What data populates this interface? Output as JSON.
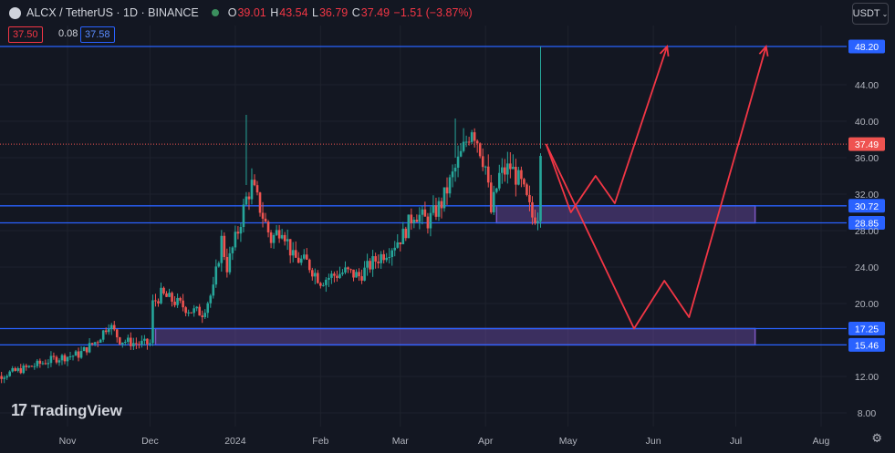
{
  "header": {
    "symbol": "ALCX / TetherUS · 1D · BINANCE",
    "o_label": "O",
    "o_value": "39.01",
    "h_label": "H",
    "h_value": "43.54",
    "l_label": "L",
    "l_value": "36.79",
    "c_label": "C",
    "c_value": "37.49",
    "change": "−1.51 (−3.87%)"
  },
  "currency_button": "USDT",
  "prices": {
    "bid": "37.50",
    "spread": "0.08",
    "ask": "37.58"
  },
  "logo_text": "TradingView",
  "colors": {
    "background": "#131722",
    "up": "#26a69a",
    "down": "#ef5350",
    "hline": "#2962ff",
    "zone": "#7e57c2",
    "arrow": "#f23645"
  },
  "chart_data": {
    "type": "candlestick",
    "x_ticks": [
      "Nov",
      "Dec",
      "2024",
      "Feb",
      "Mar",
      "Apr",
      "May",
      "Jun",
      "Jul",
      "Aug"
    ],
    "y_ticks": [
      "48.20",
      "44.00",
      "40.00",
      "37.49",
      "36.00",
      "32.00",
      "30.72",
      "28.85",
      "28.00",
      "24.00",
      "20.00",
      "17.25",
      "15.46",
      "12.00",
      "8.00"
    ],
    "y_range": [
      6.5,
      50.5
    ],
    "last_price": 37.49,
    "horizontal_levels": [
      48.2,
      30.72,
      28.85,
      17.25,
      15.46
    ],
    "zones": [
      {
        "low": 28.85,
        "high": 30.72,
        "from": "2024-04-05",
        "to": "2024-07-08"
      },
      {
        "low": 15.46,
        "high": 17.25,
        "from": "2023-12-03",
        "to": "2024-07-08"
      }
    ],
    "price_path": [
      [
        "2023-10-01",
        11.4
      ],
      [
        "2023-10-10",
        12.3
      ],
      [
        "2023-10-20",
        13.2
      ],
      [
        "2023-10-28",
        14.0
      ],
      [
        "2023-11-05",
        14.4
      ],
      [
        "2023-11-12",
        16.0
      ],
      [
        "2023-11-16",
        17.8
      ],
      [
        "2023-11-20",
        16.0
      ],
      [
        "2023-11-26",
        15.6
      ],
      [
        "2023-12-01",
        15.6
      ],
      [
        "2023-12-02",
        20.0
      ],
      [
        "2023-12-05",
        21.0
      ],
      [
        "2023-12-10",
        20.2
      ],
      [
        "2023-12-16",
        19.2
      ],
      [
        "2023-12-20",
        19.0
      ],
      [
        "2023-12-24",
        21.5
      ],
      [
        "2023-12-27",
        27.0
      ],
      [
        "2023-12-29",
        24.0
      ],
      [
        "2024-01-02",
        28.0
      ],
      [
        "2024-01-05",
        31.5
      ],
      [
        "2024-01-07",
        33.0
      ],
      [
        "2024-01-10",
        30.5
      ],
      [
        "2024-01-14",
        27.0
      ],
      [
        "2024-01-18",
        28.5
      ],
      [
        "2024-01-22",
        25.0
      ],
      [
        "2024-01-27",
        24.5
      ],
      [
        "2024-02-01",
        22.5
      ],
      [
        "2024-02-05",
        23.0
      ],
      [
        "2024-02-10",
        23.5
      ],
      [
        "2024-02-15",
        23.0
      ],
      [
        "2024-02-20",
        24.5
      ],
      [
        "2024-02-26",
        26.0
      ],
      [
        "2024-03-02",
        27.5
      ],
      [
        "2024-03-06",
        30.0
      ],
      [
        "2024-03-11",
        29.0
      ],
      [
        "2024-03-16",
        31.0
      ],
      [
        "2024-03-20",
        34.0
      ],
      [
        "2024-03-24",
        37.0
      ],
      [
        "2024-03-27",
        39.5
      ],
      [
        "2024-03-29",
        38.0
      ],
      [
        "2024-04-01",
        35.0
      ],
      [
        "2024-04-03",
        30.0
      ],
      [
        "2024-04-06",
        34.0
      ],
      [
        "2024-04-10",
        35.0
      ],
      [
        "2024-04-14",
        33.0
      ],
      [
        "2024-04-18",
        29.5
      ],
      [
        "2024-04-20",
        29.8
      ],
      [
        "2024-04-21",
        37.5
      ]
    ],
    "projection_arrows": [
      [
        [
          "2024-04-23",
          37.5
        ],
        [
          "2024-05-02",
          30.0
        ],
        [
          "2024-05-11",
          34.0
        ],
        [
          "2024-05-18",
          31.0
        ],
        [
          "2024-06-06",
          48.2
        ]
      ],
      [
        [
          "2024-04-23",
          37.5
        ],
        [
          "2024-05-25",
          17.25
        ],
        [
          "2024-06-05",
          22.5
        ],
        [
          "2024-06-14",
          18.5
        ],
        [
          "2024-07-12",
          48.2
        ]
      ]
    ]
  }
}
